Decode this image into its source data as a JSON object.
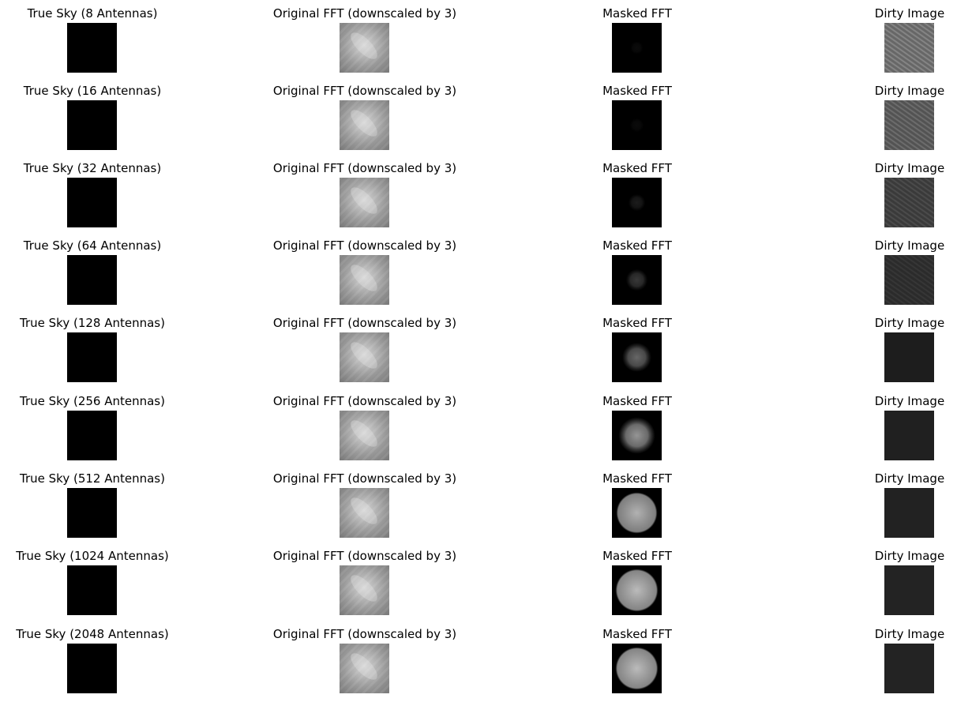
{
  "figure": {
    "columns": [
      "True Sky",
      "Original FFT (downscaled by 3)",
      "Masked FFT",
      "Dirty Image"
    ],
    "rows": [
      {
        "antennas": 8,
        "titles": [
          "True Sky (8 Antennas)",
          "Original FFT (downscaled by 3)",
          "Masked FFT",
          "Dirty Image"
        ],
        "mask_coverage": 0.02,
        "dirty_brightness": 0.55
      },
      {
        "antennas": 16,
        "titles": [
          "True Sky (16 Antennas)",
          "Original FFT (downscaled by 3)",
          "Masked FFT",
          "Dirty Image"
        ],
        "mask_coverage": 0.05,
        "dirty_brightness": 0.42
      },
      {
        "antennas": 32,
        "titles": [
          "True Sky (32 Antennas)",
          "Original FFT (downscaled by 3)",
          "Masked FFT",
          "Dirty Image"
        ],
        "mask_coverage": 0.15,
        "dirty_brightness": 0.25
      },
      {
        "antennas": 64,
        "titles": [
          "True Sky (64 Antennas)",
          "Original FFT (downscaled by 3)",
          "Masked FFT",
          "Dirty Image"
        ],
        "mask_coverage": 0.3,
        "dirty_brightness": 0.15
      },
      {
        "antennas": 128,
        "titles": [
          "True Sky (128 Antennas)",
          "Original FFT (downscaled by 3)",
          "Masked FFT",
          "Dirty Image"
        ],
        "mask_coverage": 0.55,
        "dirty_brightness": 0.06
      },
      {
        "antennas": 256,
        "titles": [
          "True Sky (256 Antennas)",
          "Original FFT (downscaled by 3)",
          "Masked FFT",
          "Dirty Image"
        ],
        "mask_coverage": 0.8,
        "dirty_brightness": 0.08
      },
      {
        "antennas": 512,
        "titles": [
          "True Sky (512 Antennas)",
          "Original FFT (downscaled by 3)",
          "Masked FFT",
          "Dirty Image"
        ],
        "mask_coverage": 0.95,
        "dirty_brightness": 0.09
      },
      {
        "antennas": 1024,
        "titles": [
          "True Sky (1024 Antennas)",
          "Original FFT (downscaled by 3)",
          "Masked FFT",
          "Dirty Image"
        ],
        "mask_coverage": 1.0,
        "dirty_brightness": 0.1
      },
      {
        "antennas": 2048,
        "titles": [
          "True Sky (2048 Antennas)",
          "Original FFT (downscaled by 3)",
          "Masked FFT",
          "Dirty Image"
        ],
        "mask_coverage": 1.0,
        "dirty_brightness": 0.1
      }
    ]
  }
}
